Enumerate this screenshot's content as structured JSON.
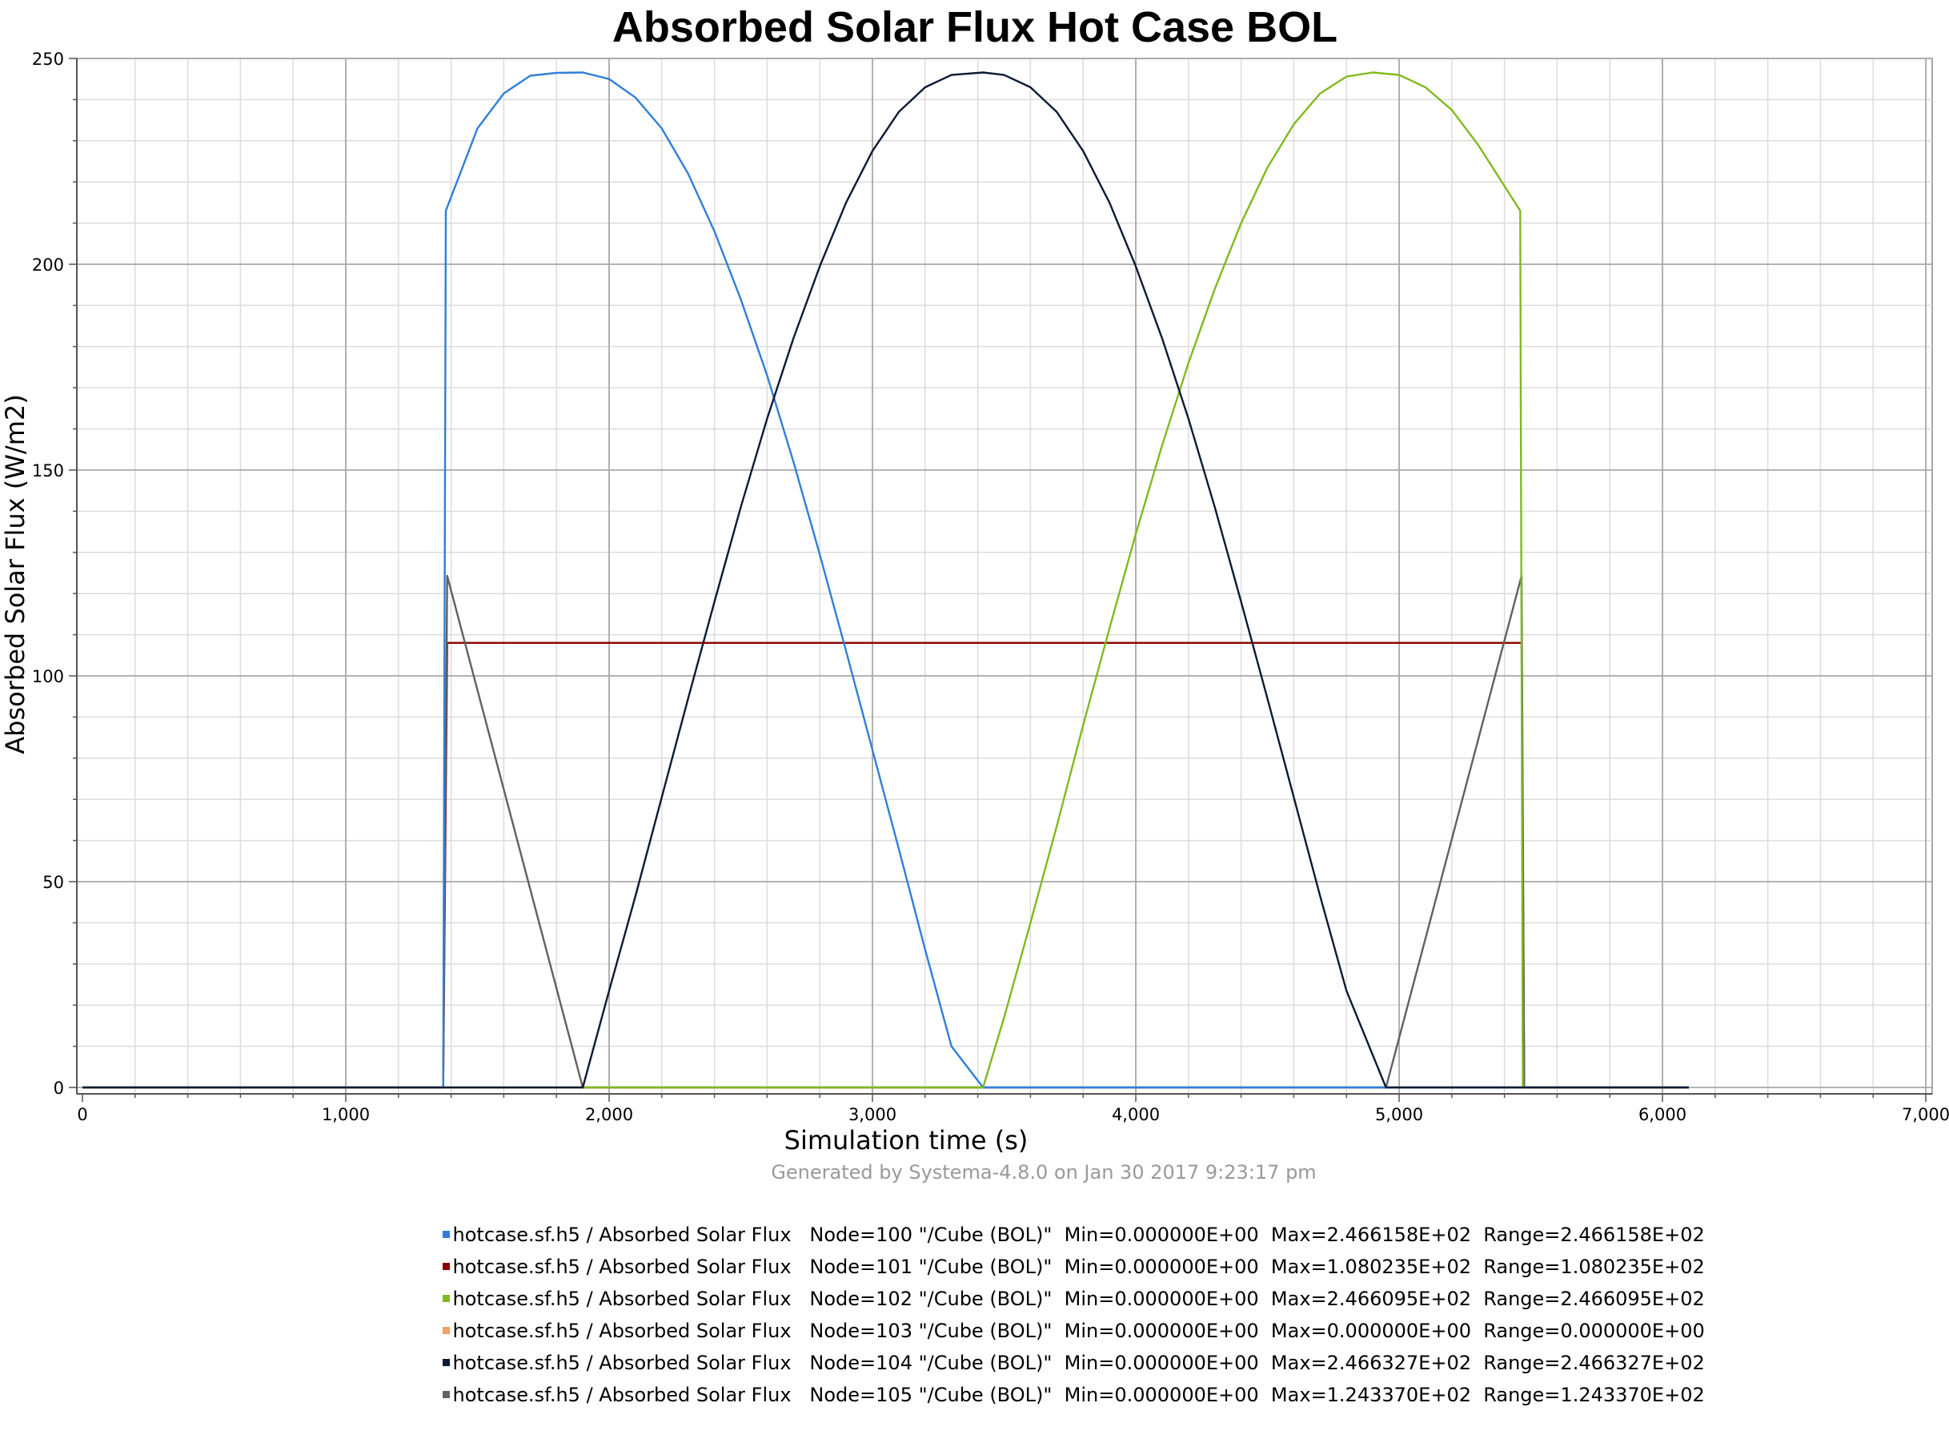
{
  "chart_data": {
    "type": "line",
    "title": "Absorbed Solar Flux Hot Case BOL",
    "xlabel": "Simulation time (s)",
    "ylabel": "Absorbed Solar Flux (W/m2)",
    "footer": "Generated by Systema-4.8.0 on Jan 30 2017 9:23:17 pm",
    "xlim": [
      0,
      7000
    ],
    "ylim": [
      0,
      250
    ],
    "xticks": [
      0,
      1000,
      2000,
      3000,
      4000,
      5000,
      6000,
      7000
    ],
    "xtick_labels": [
      "0",
      "1,000",
      "2,000",
      "3,000",
      "4,000",
      "5,000",
      "6,000",
      "7,000"
    ],
    "yticks": [
      0,
      50,
      100,
      150,
      200,
      250
    ],
    "ytick_labels": [
      "0",
      "50",
      "100",
      "150",
      "200",
      "250"
    ],
    "grid": true,
    "legend_position": "bottom",
    "series": [
      {
        "name": "hotcase.sf.h5 / Absorbed Solar Flux   Node=100 \"/Cube (BOL)\"  Min=0.000000E+00  Max=2.466158E+02  Range=2.466158E+02",
        "color": "#2f7fd8",
        "points": [
          [
            0,
            0
          ],
          [
            1370,
            0
          ],
          [
            1380,
            213
          ],
          [
            1500,
            233
          ],
          [
            1600,
            241.5
          ],
          [
            1700,
            245.8
          ],
          [
            1800,
            246.5
          ],
          [
            1900,
            246.6
          ],
          [
            2000,
            245
          ],
          [
            2100,
            240.5
          ],
          [
            2200,
            233
          ],
          [
            2300,
            222
          ],
          [
            2400,
            208
          ],
          [
            2500,
            191.5
          ],
          [
            2600,
            173
          ],
          [
            2700,
            152
          ],
          [
            2800,
            129.5
          ],
          [
            2900,
            106
          ],
          [
            3000,
            82
          ],
          [
            3100,
            58
          ],
          [
            3200,
            33.5
          ],
          [
            3300,
            10
          ],
          [
            3420,
            0
          ],
          [
            6100,
            0
          ]
        ]
      },
      {
        "name": "hotcase.sf.h5 / Absorbed Solar Flux   Node=101 \"/Cube (BOL)\"  Min=0.000000E+00  Max=1.080235E+02  Range=1.080235E+02",
        "color": "#8b0000",
        "points": [
          [
            0,
            0
          ],
          [
            1370,
            0
          ],
          [
            1385,
            108.02
          ],
          [
            5465,
            108.02
          ],
          [
            5475,
            0
          ],
          [
            6100,
            0
          ]
        ]
      },
      {
        "name": "hotcase.sf.h5 / Absorbed Solar Flux   Node=102 \"/Cube (BOL)\"  Min=0.000000E+00  Max=2.466095E+02  Range=2.466095E+02",
        "color": "#7fba1f",
        "points": [
          [
            0,
            0
          ],
          [
            3420,
            0
          ],
          [
            3500,
            17
          ],
          [
            3600,
            40
          ],
          [
            3700,
            63.5
          ],
          [
            3800,
            88
          ],
          [
            3900,
            111.5
          ],
          [
            4000,
            134.5
          ],
          [
            4100,
            156
          ],
          [
            4200,
            176
          ],
          [
            4300,
            194
          ],
          [
            4400,
            210
          ],
          [
            4500,
            223.5
          ],
          [
            4600,
            234
          ],
          [
            4700,
            241.5
          ],
          [
            4800,
            245.6
          ],
          [
            4900,
            246.6
          ],
          [
            5000,
            246
          ],
          [
            5100,
            243
          ],
          [
            5200,
            237.5
          ],
          [
            5300,
            229
          ],
          [
            5400,
            219
          ],
          [
            5460,
            213
          ],
          [
            5470,
            0
          ],
          [
            6100,
            0
          ]
        ]
      },
      {
        "name": "hotcase.sf.h5 / Absorbed Solar Flux   Node=103 \"/Cube (BOL)\"  Min=0.000000E+00  Max=0.000000E+00  Range=0.000000E+00",
        "color": "#f0a060",
        "points": [
          [
            0,
            0
          ],
          [
            6100,
            0
          ]
        ]
      },
      {
        "name": "hotcase.sf.h5 / Absorbed Solar Flux   Node=104 \"/Cube (BOL)\"  Min=0.000000E+00  Max=2.466327E+02  Range=2.466327E+02",
        "color": "#0b1a33",
        "points": [
          [
            0,
            0
          ],
          [
            1900,
            0
          ],
          [
            2000,
            23.5
          ],
          [
            2100,
            46.5
          ],
          [
            2200,
            70.5
          ],
          [
            2300,
            94.5
          ],
          [
            2400,
            118
          ],
          [
            2500,
            141
          ],
          [
            2600,
            162.5
          ],
          [
            2700,
            182
          ],
          [
            2800,
            199.5
          ],
          [
            2900,
            215
          ],
          [
            3000,
            227.5
          ],
          [
            3100,
            237
          ],
          [
            3200,
            243
          ],
          [
            3300,
            246
          ],
          [
            3420,
            246.6
          ],
          [
            3500,
            246
          ],
          [
            3600,
            243
          ],
          [
            3700,
            237
          ],
          [
            3800,
            227.5
          ],
          [
            3900,
            215
          ],
          [
            4000,
            199.5
          ],
          [
            4100,
            182
          ],
          [
            4200,
            162.5
          ],
          [
            4300,
            141
          ],
          [
            4400,
            118
          ],
          [
            4500,
            94.5
          ],
          [
            4600,
            70.5
          ],
          [
            4700,
            46.5
          ],
          [
            4800,
            23.5
          ],
          [
            4950,
            0
          ],
          [
            6100,
            0
          ]
        ]
      },
      {
        "name": "hotcase.sf.h5 / Absorbed Solar Flux   Node=105 \"/Cube (BOL)\"  Min=0.000000E+00  Max=1.243370E+02  Range=1.243370E+02",
        "color": "#606060",
        "points": [
          [
            0,
            0
          ],
          [
            1370,
            0
          ],
          [
            1385,
            124.3
          ],
          [
            1900,
            0
          ],
          [
            4950,
            0
          ],
          [
            5465,
            124.3
          ],
          [
            5475,
            0
          ],
          [
            6100,
            0
          ]
        ]
      }
    ]
  }
}
